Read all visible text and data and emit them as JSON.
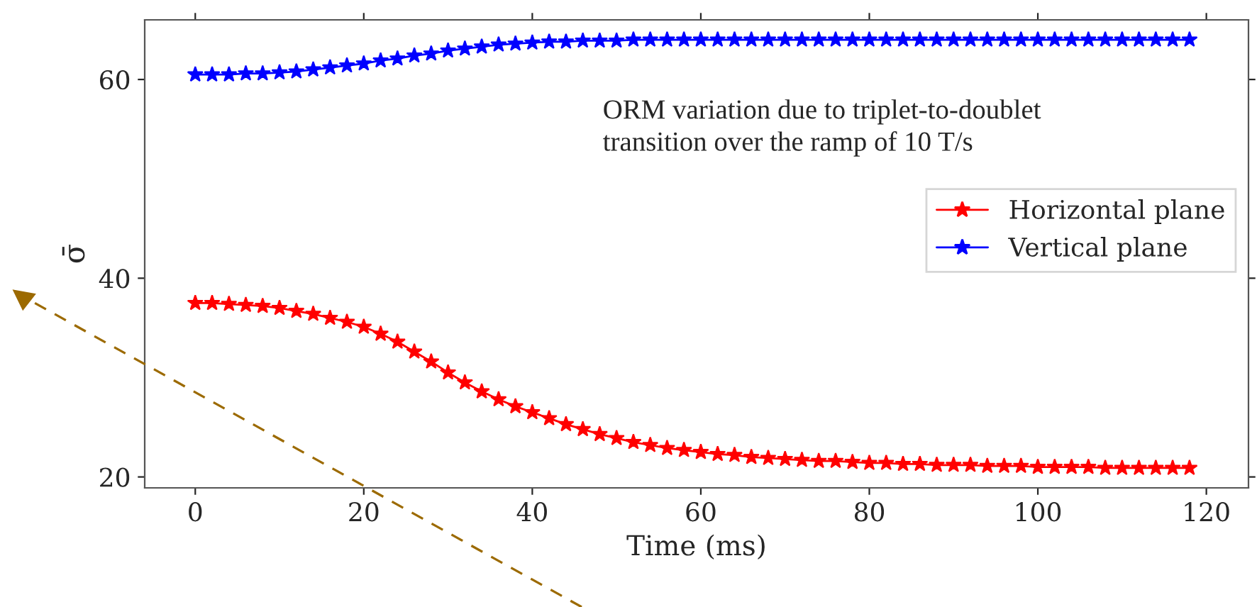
{
  "chart_data": {
    "type": "line",
    "xlabel": "Time (ms)",
    "ylabel": "σ̄",
    "x": [
      0,
      2,
      4,
      6,
      8,
      10,
      12,
      14,
      16,
      18,
      20,
      22,
      24,
      26,
      28,
      30,
      32,
      34,
      36,
      38,
      40,
      42,
      44,
      46,
      48,
      50,
      52,
      54,
      56,
      58,
      60,
      62,
      64,
      66,
      68,
      70,
      72,
      74,
      76,
      78,
      80,
      82,
      84,
      86,
      88,
      90,
      92,
      94,
      96,
      98,
      100,
      102,
      104,
      106,
      108,
      110,
      112,
      114,
      116,
      118
    ],
    "series": [
      {
        "name": "Horizontal plane",
        "color": "#ff0000",
        "values": [
          37.5,
          37.5,
          37.4,
          37.3,
          37.2,
          37.0,
          36.7,
          36.4,
          36.0,
          35.6,
          35.1,
          34.4,
          33.6,
          32.6,
          31.6,
          30.5,
          29.5,
          28.6,
          27.8,
          27.1,
          26.5,
          25.9,
          25.3,
          24.8,
          24.3,
          23.9,
          23.5,
          23.2,
          22.9,
          22.7,
          22.5,
          22.3,
          22.2,
          22.0,
          21.9,
          21.8,
          21.7,
          21.6,
          21.6,
          21.5,
          21.4,
          21.4,
          21.3,
          21.3,
          21.2,
          21.2,
          21.2,
          21.1,
          21.1,
          21.1,
          21.0,
          21.0,
          21.0,
          21.0,
          20.9,
          20.9,
          20.9,
          20.9,
          20.9,
          20.9
        ]
      },
      {
        "name": "Vertical plane",
        "color": "#0000ff",
        "values": [
          60.5,
          60.5,
          60.5,
          60.6,
          60.6,
          60.7,
          60.8,
          61.0,
          61.2,
          61.4,
          61.6,
          61.9,
          62.1,
          62.4,
          62.6,
          62.9,
          63.1,
          63.3,
          63.5,
          63.6,
          63.7,
          63.8,
          63.8,
          63.9,
          63.9,
          63.9,
          64.0,
          64.0,
          64.0,
          64.0,
          64.0,
          64.0,
          64.0,
          64.0,
          64.0,
          64.0,
          64.0,
          64.0,
          64.0,
          64.0,
          64.0,
          64.0,
          64.0,
          64.0,
          64.0,
          64.0,
          64.0,
          64.0,
          64.0,
          64.0,
          64.0,
          64.0,
          64.0,
          64.0,
          64.0,
          64.0,
          64.0,
          64.0,
          64.0,
          64.0
        ]
      }
    ],
    "xlim": [
      -6,
      125
    ],
    "ylim": [
      18.9,
      66
    ],
    "xticks": [
      0,
      20,
      40,
      60,
      80,
      100,
      120
    ],
    "yticks": [
      20,
      40,
      60
    ],
    "annotations": [
      "ORM variation due to triplet-to-doublet\ntransition over the ramp of 10 T/s"
    ],
    "legend": "right",
    "marker": "star",
    "line_style": "solid",
    "grid": false
  }
}
